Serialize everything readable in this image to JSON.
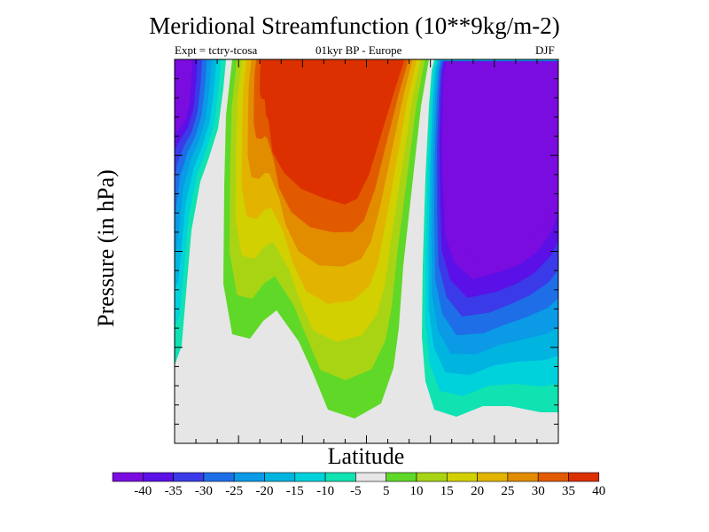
{
  "chart_data": {
    "type": "heatmap",
    "title": "Meridional Streamfunction (10**9kg/m-2)",
    "subtitle_left": "Expt = tctry-tcosa",
    "subtitle_center": "01kyr BP - Europe",
    "subtitle_right": "DJF",
    "xlabel": "Latitude",
    "ylabel": "Pressure (in hPa)",
    "colorbar": {
      "levels": [
        "-40",
        "-35",
        "-30",
        "-25",
        "-20",
        "-15",
        "-10",
        "-5",
        "5",
        "10",
        "15",
        "20",
        "25",
        "30",
        "35",
        "40"
      ],
      "colors": [
        "#7a0ce0",
        "#5a10e6",
        "#3a3ae8",
        "#1e6ee8",
        "#0a9ae6",
        "#00b4e0",
        "#00d2dc",
        "#10e2b2",
        "#e6e6e6",
        "#60d828",
        "#a8d414",
        "#d2d000",
        "#e2b400",
        "#e28c00",
        "#e25a00",
        "#dc3000"
      ]
    },
    "cells": [
      {
        "name": "south-pole-negative-cell",
        "sign": "negative",
        "peak": -40
      },
      {
        "name": "central-positive-cell",
        "sign": "positive",
        "peak": 40
      },
      {
        "name": "northern-negative-cell",
        "sign": "negative",
        "peak": -40
      }
    ]
  }
}
